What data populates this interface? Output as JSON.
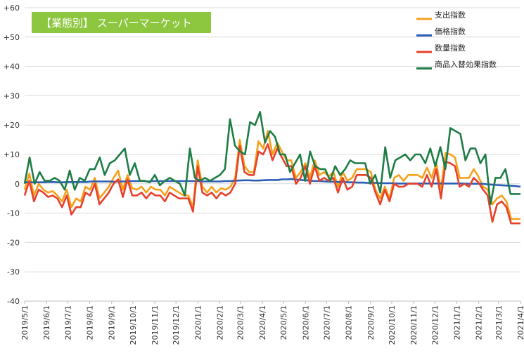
{
  "chart_data": {
    "type": "line",
    "title": "【業態別】 スーパーマーケット",
    "title_badge_color": "#8dc63f",
    "xlabel": "",
    "ylabel": "",
    "ylim": [
      -40,
      60
    ],
    "y_ticks": [
      -40,
      -30,
      -20,
      -10,
      0,
      10,
      20,
      30,
      40,
      50,
      60
    ],
    "y_tick_labels": [
      "-40",
      "-30",
      "-20",
      "-10",
      "0",
      "+10",
      "+20",
      "+30",
      "+40",
      "+50",
      "+60"
    ],
    "x_ticks": [
      "2019/5/1",
      "2019/6/1",
      "2019/7/1",
      "2019/8/1",
      "2019/9/1",
      "2019/10/1",
      "2019/11/1",
      "2019/12/1",
      "2020/1/1",
      "2020/2/1",
      "2020/3/1",
      "2020/4/1",
      "2020/5/1",
      "2020/6/1",
      "2020/7/1",
      "2020/8/1",
      "2020/9/1",
      "2020/10/1",
      "2020/11/1",
      "2020/12/1",
      "2021/1/1",
      "2021/2/1",
      "2021/3/1",
      "2021/4/1"
    ],
    "grid": "horizontal",
    "legend_position": "top-right",
    "x_start": "2019/5/1",
    "x_end": "2021/4/1",
    "series": [
      {
        "name": "支出指数",
        "color": "#f5a11c",
        "values": [
          -2,
          3.5,
          -4,
          0,
          -2,
          -3,
          -2.5,
          -4,
          -6,
          -2,
          -8,
          -5,
          -6,
          -1,
          -2,
          2,
          -5,
          -3,
          -1,
          2,
          4.5,
          -2,
          3,
          -1.5,
          -2,
          -1,
          -3,
          -1,
          -2,
          -2,
          -4,
          -1,
          -2,
          -3,
          -4,
          -4,
          -8,
          8,
          -1,
          -3,
          -1,
          -3,
          -1.5,
          -2,
          -1,
          2,
          15,
          6,
          4,
          4,
          14.5,
          12,
          18,
          10,
          14,
          11,
          8,
          8,
          2,
          4,
          7,
          2,
          8,
          3,
          4,
          2.5,
          4,
          -1,
          4,
          1,
          2,
          5,
          5,
          5,
          4,
          -2,
          -5,
          -1,
          -5,
          2,
          3,
          1,
          3,
          3,
          3,
          2,
          5.5,
          2,
          7,
          -2,
          10.5,
          10,
          9,
          2,
          2,
          2,
          5,
          2.5,
          -1,
          -2,
          -7,
          -5,
          -4,
          -6,
          -12,
          -12,
          -12
        ]
      },
      {
        "name": "価格指数",
        "color": "#2b5eb5",
        "values": [
          0.5,
          0.5,
          0.5,
          0.5,
          0.5,
          0.6,
          0.6,
          0.5,
          0.5,
          0.6,
          0.6,
          0.6,
          0.6,
          0.6,
          0.8,
          0.8,
          0.8,
          0.8,
          0.8,
          0.7,
          0.8,
          0.8,
          0.9,
          0.9,
          0.9,
          0.9,
          0.8,
          0.9,
          0.9,
          0.9,
          0.9,
          0.9,
          0.9,
          0.9,
          0.9,
          0.9,
          0.9,
          0.8,
          0.8,
          0.8,
          0.8,
          0.8,
          0.9,
          0.9,
          1.0,
          1.1,
          1.2,
          1.2,
          1.1,
          1.1,
          1.2,
          1.3,
          1.3,
          1.3,
          1.5,
          1.5,
          1.6,
          1.4,
          1.3,
          1.2,
          1.0,
          0.9,
          0.9,
          0.8,
          0.7,
          0.7,
          0.6,
          0.6,
          0.5,
          0.5,
          0.4,
          0.4,
          0.3,
          0.3,
          0.3,
          0.2,
          0.2,
          0.2,
          0.1,
          0.1,
          0.1,
          0.1,
          0.1,
          0.1,
          0.1,
          0.1,
          0.1,
          0.1,
          0.1,
          0.1,
          0.1,
          0.1,
          0.1,
          0.0,
          0.0,
          0.0,
          0.0,
          -0.2,
          -0.3,
          -0.4,
          -0.5,
          -0.6,
          -0.7,
          -0.8,
          -1.0
        ]
      },
      {
        "name": "数量指数",
        "color": "#e8412c",
        "values": [
          -4,
          1,
          -6,
          -2,
          -3,
          -4.5,
          -4,
          -5,
          -8,
          -4,
          -10.5,
          -8,
          -8,
          -3,
          -4,
          0,
          -7,
          -5,
          -3,
          0,
          1.5,
          -4.5,
          1.5,
          -4,
          -4,
          -3,
          -5,
          -3,
          -4,
          -4,
          -6,
          -3,
          -4,
          -5,
          -5,
          -5,
          -9.5,
          6,
          -3,
          -4,
          -3,
          -5,
          -3,
          -4,
          -3,
          0,
          13,
          4,
          3,
          3,
          11,
          10,
          13.5,
          8,
          12,
          9,
          6,
          6,
          0,
          2,
          6,
          0,
          6,
          1,
          2,
          1,
          2,
          -3,
          2,
          -2,
          -1,
          3,
          3,
          3,
          2,
          -3,
          -7,
          -2,
          -6,
          0,
          -1,
          -1,
          0,
          0,
          0,
          -1,
          3,
          -1,
          5,
          -5,
          7.5,
          7,
          6,
          -1,
          0,
          -1,
          2,
          0.5,
          -2,
          -4,
          -13,
          -7,
          -6,
          -8,
          -13.5,
          -13.5,
          -13.5
        ]
      },
      {
        "name": "商品入替効果指数",
        "color": "#1e7d45",
        "values": [
          0,
          9,
          0,
          4,
          1,
          1,
          2,
          1,
          -2,
          4.5,
          -2,
          2,
          1,
          5,
          5,
          9,
          3,
          7,
          8,
          10,
          12,
          3,
          7,
          1,
          1,
          0.5,
          3,
          -0.5,
          1,
          2,
          1,
          0,
          -4,
          12,
          2,
          1,
          2,
          1,
          2,
          3,
          5,
          22,
          13,
          11,
          10,
          21,
          20,
          24.5,
          14,
          18,
          16,
          10,
          10,
          4,
          7,
          10,
          1,
          11,
          6,
          5,
          5,
          1,
          6,
          3,
          5,
          8,
          7,
          7,
          7,
          0,
          3,
          -3,
          12.5,
          2,
          8,
          9,
          10,
          8,
          10,
          10,
          7,
          12,
          6,
          12.5,
          5,
          19,
          18,
          17,
          8,
          12,
          12,
          7,
          10,
          -7,
          2,
          2,
          5,
          -3.5,
          -3.5,
          -3.5
        ]
      }
    ]
  }
}
